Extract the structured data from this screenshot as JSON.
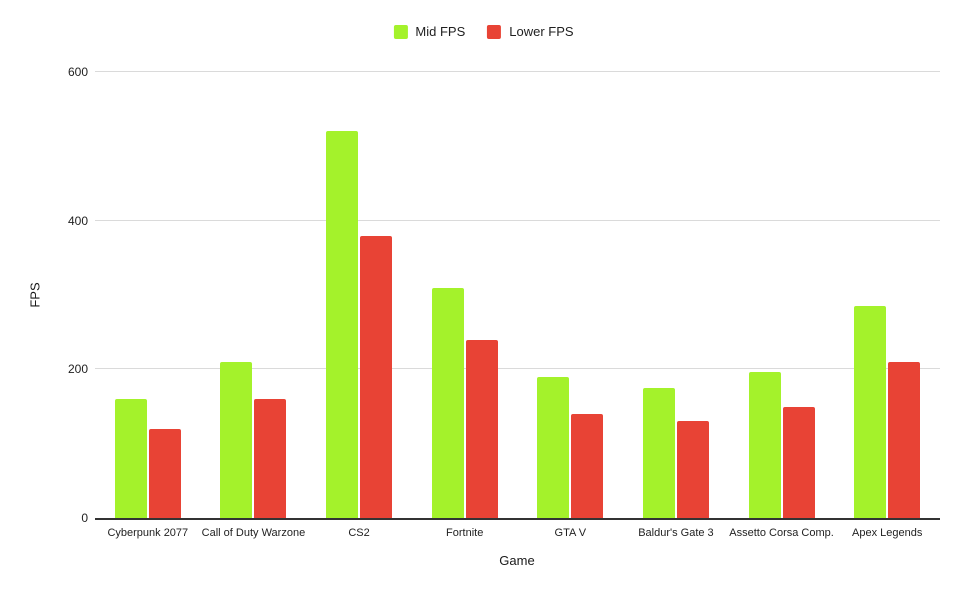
{
  "chart_data": {
    "type": "bar",
    "title": "",
    "categories": [
      "Cyberpunk 2077",
      "Call of Duty Warzone",
      "CS2",
      "Fortnite",
      "GTA V",
      "Baldur's Gate 3",
      "Assetto Corsa Comp.",
      "Apex Legends"
    ],
    "series": [
      {
        "name": "Mid FPS",
        "color": "#A4F22B",
        "values": [
          160,
          210,
          520,
          310,
          190,
          175,
          197,
          285
        ]
      },
      {
        "name": "Lower FPS",
        "color": "#E84335",
        "values": [
          120,
          160,
          380,
          240,
          140,
          130,
          150,
          210
        ]
      }
    ],
    "xlabel": "Game",
    "ylabel": "FPS",
    "ylim": [
      0,
      600
    ],
    "yticks": [
      0,
      200,
      400,
      600
    ],
    "grid": true,
    "legend_position": "top-center",
    "colors": {
      "gridline": "#dadada",
      "axis_line": "#333333",
      "text": "#1f1f1f",
      "background": "#ffffff"
    }
  }
}
